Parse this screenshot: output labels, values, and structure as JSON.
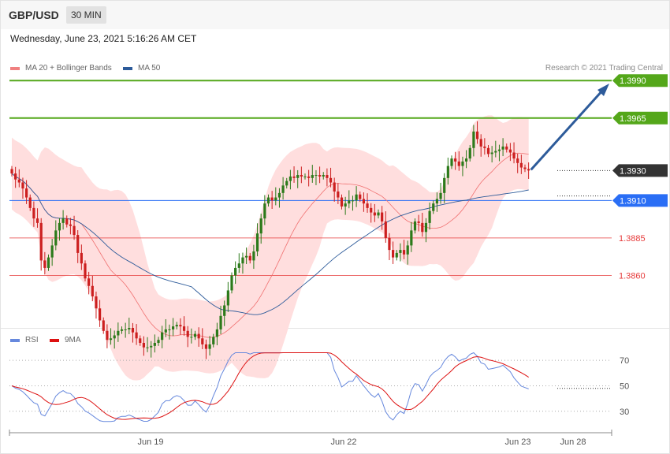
{
  "header": {
    "symbol": "GBP/USD",
    "timeframe": "30 MIN"
  },
  "date_text": "Wednesday, June 23, 2021 5:16:26 AM CET",
  "credit": "Research © 2021 Trading Central",
  "legend_main": [
    {
      "label": "MA 20 + Bollinger Bands",
      "color": "#f08080"
    },
    {
      "label": "MA 50",
      "color": "#2d5b9a"
    }
  ],
  "legend_rsi": [
    {
      "label": "RSI",
      "color": "#6688dd"
    },
    {
      "label": "9MA",
      "color": "#dd1111"
    }
  ],
  "colors": {
    "up": "#2c7a1a",
    "down": "#cc1f1f",
    "band": "#ffdede",
    "resistance": "#54a71a",
    "support": "#e63b3b",
    "current": "#333333",
    "pivot": "#2a6ef5",
    "ma20": "#f07070",
    "ma50": "#2d5b9a",
    "arrow": "#2d5b9a"
  },
  "chart_data": [
    {
      "type": "candlestick",
      "instrument": "GBP/USD",
      "timeframe": "30 MIN",
      "x_ticks": [
        "Jun 19",
        "Jun 22",
        "Jun 23",
        "Jun 28"
      ],
      "ylim": [
        1.3825,
        1.3998
      ],
      "levels": [
        {
          "value": "1.3990",
          "type": "resistance"
        },
        {
          "value": "1.3965",
          "type": "resistance"
        },
        {
          "value": "1.3930",
          "type": "current"
        },
        {
          "value": "1.3910",
          "type": "pivot"
        },
        {
          "value": "1.3885",
          "type": "support"
        },
        {
          "value": "1.3860",
          "type": "support"
        }
      ],
      "close": [
        1.3928,
        1.3924,
        1.3922,
        1.3918,
        1.3912,
        1.3905,
        1.3898,
        1.3895,
        1.387,
        1.3865,
        1.3872,
        1.388,
        1.389,
        1.3895,
        1.3898,
        1.3894,
        1.3893,
        1.3887,
        1.3875,
        1.3868,
        1.3858,
        1.3853,
        1.3846,
        1.3838,
        1.383,
        1.3823,
        1.3817,
        1.3818,
        1.382,
        1.3823,
        1.3824,
        1.3824,
        1.3825,
        1.3822,
        1.3818,
        1.3815,
        1.3812,
        1.3812,
        1.3813,
        1.3815,
        1.3817,
        1.3822,
        1.3824,
        1.3824,
        1.3826,
        1.3827,
        1.3826,
        1.3823,
        1.3819,
        1.3819,
        1.3821,
        1.3818,
        1.3814,
        1.3811,
        1.3814,
        1.3819,
        1.3824,
        1.3833,
        1.384,
        1.385,
        1.386,
        1.3865,
        1.3868,
        1.3872,
        1.3873,
        1.387,
        1.3876,
        1.3888,
        1.3898,
        1.3908,
        1.3912,
        1.391,
        1.3912,
        1.3915,
        1.392,
        1.3923,
        1.3926,
        1.3925,
        1.3927,
        1.3926,
        1.3926,
        1.3925,
        1.3927,
        1.3927,
        1.3926,
        1.3927,
        1.3925,
        1.3922,
        1.3916,
        1.3912,
        1.3906,
        1.3908,
        1.391,
        1.391,
        1.3914,
        1.3911,
        1.3908,
        1.3905,
        1.3902,
        1.39,
        1.3902,
        1.3896,
        1.3885,
        1.3877,
        1.3872,
        1.3875,
        1.3877,
        1.3874,
        1.388,
        1.389,
        1.3896,
        1.3895,
        1.3889,
        1.3895,
        1.3903,
        1.3908,
        1.3911,
        1.3915,
        1.3925,
        1.3933,
        1.3938,
        1.3936,
        1.3933,
        1.3936,
        1.3938,
        1.3945,
        1.3956,
        1.3951,
        1.3946,
        1.3945,
        1.3941,
        1.3942,
        1.3943,
        1.3944,
        1.3946,
        1.3944,
        1.3942,
        1.3938,
        1.3935,
        1.3932,
        1.3931,
        1.393
      ]
    },
    {
      "type": "line",
      "name": "RSI",
      "series_names": [
        "RSI",
        "9MA"
      ],
      "y_ticks": [
        70,
        50,
        30
      ],
      "ylim": [
        15,
        80
      ]
    }
  ]
}
